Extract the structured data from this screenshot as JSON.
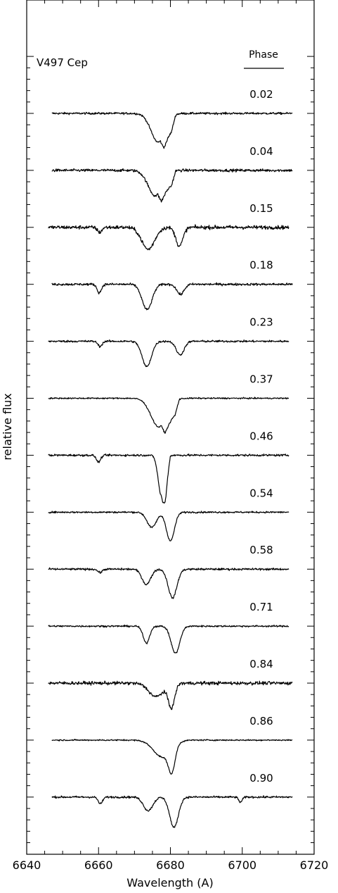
{
  "chart_data": {
    "type": "line",
    "title": "V497 Cep",
    "xlabel": "Wavelength (A)",
    "ylabel": "relative flux",
    "legend_header": "Phase",
    "xlim": [
      6640,
      6720
    ],
    "x_ticks": [
      6640,
      6660,
      6680,
      6700,
      6720
    ],
    "x_tick_labels": [
      "6640",
      "6660",
      "6680",
      "6700",
      "6720"
    ],
    "grid": false,
    "series": [
      {
        "name": "0.02",
        "x_range": [
          6647,
          6714
        ],
        "continuum": 1.0,
        "noise": 0.006,
        "components": [
          {
            "center": 6676.6,
            "depth": 0.17,
            "width": 2.0
          }
        ],
        "asym": {
          "start": 6678.2,
          "end": 6681.5,
          "depth": 0.08
        },
        "bumps": []
      },
      {
        "name": "0.04",
        "x_range": [
          6647,
          6714
        ],
        "continuum": 1.0,
        "noise": 0.008,
        "components": [
          {
            "center": 6675.8,
            "depth": 0.15,
            "width": 2.0
          }
        ],
        "asym": {
          "start": 6677.5,
          "end": 6681.5,
          "depth": 0.08
        },
        "bumps": []
      },
      {
        "name": "0.15",
        "x_range": [
          6646,
          6713
        ],
        "continuum": 1.0,
        "noise": 0.011,
        "components": [
          {
            "center": 6673.8,
            "depth": 0.13,
            "width": 1.8
          },
          {
            "center": 6682.5,
            "depth": 0.11,
            "width": 1.0
          }
        ],
        "asym": null,
        "bumps": [
          {
            "center": 6660.3,
            "depth": 0.03,
            "width": 0.6
          }
        ]
      },
      {
        "name": "0.18",
        "x_range": [
          6647,
          6714
        ],
        "continuum": 1.0,
        "noise": 0.007,
        "components": [
          {
            "center": 6673.5,
            "depth": 0.15,
            "width": 1.4
          },
          {
            "center": 6682.8,
            "depth": 0.06,
            "width": 1.0
          }
        ],
        "asym": null,
        "bumps": [
          {
            "center": 6660.2,
            "depth": 0.05,
            "width": 0.6
          }
        ]
      },
      {
        "name": "0.23",
        "x_range": [
          6646,
          6713
        ],
        "continuum": 1.0,
        "noise": 0.006,
        "components": [
          {
            "center": 6673.4,
            "depth": 0.15,
            "width": 1.3
          },
          {
            "center": 6682.7,
            "depth": 0.08,
            "width": 1.1
          }
        ],
        "asym": null,
        "bumps": [
          {
            "center": 6660.4,
            "depth": 0.03,
            "width": 0.6
          }
        ]
      },
      {
        "name": "0.37",
        "x_range": [
          6646,
          6713
        ],
        "continuum": 1.0,
        "noise": 0.004,
        "components": [
          {
            "center": 6676.8,
            "depth": 0.17,
            "width": 2.2
          }
        ],
        "asym": {
          "start": 6678.5,
          "end": 6682.5,
          "depth": 0.08
        },
        "bumps": []
      },
      {
        "name": "0.46",
        "x_range": [
          6646,
          6713
        ],
        "continuum": 1.0,
        "noise": 0.006,
        "components": [
          {
            "center": 6677.5,
            "depth": 0.24,
            "width": 0.9
          }
        ],
        "asym": {
          "start": 6678.5,
          "end": 6680.0,
          "depth": 0.15
        },
        "bumps": [
          {
            "center": 6660.0,
            "depth": 0.04,
            "width": 0.6
          }
        ]
      },
      {
        "name": "0.54",
        "x_range": [
          6646,
          6713
        ],
        "continuum": 1.0,
        "noise": 0.005,
        "components": [
          {
            "center": 6674.8,
            "depth": 0.09,
            "width": 1.3
          },
          {
            "center": 6680.0,
            "depth": 0.17,
            "width": 1.1
          }
        ],
        "asym": null,
        "bumps": []
      },
      {
        "name": "0.58",
        "x_range": [
          6646,
          6713
        ],
        "continuum": 1.0,
        "noise": 0.006,
        "components": [
          {
            "center": 6673.3,
            "depth": 0.09,
            "width": 1.2
          },
          {
            "center": 6680.6,
            "depth": 0.17,
            "width": 1.2
          }
        ],
        "asym": null,
        "bumps": [
          {
            "center": 6660.4,
            "depth": 0.02,
            "width": 0.6
          }
        ]
      },
      {
        "name": "0.71",
        "x_range": [
          6646,
          6713
        ],
        "continuum": 1.0,
        "noise": 0.005,
        "components": [
          {
            "center": 6673.3,
            "depth": 0.1,
            "width": 0.9
          },
          {
            "center": 6681.4,
            "depth": 0.16,
            "width": 1.2
          }
        ],
        "asym": null,
        "bumps": []
      },
      {
        "name": "0.84",
        "x_range": [
          6646,
          6714
        ],
        "continuum": 1.0,
        "noise": 0.01,
        "components": [
          {
            "center": 6676.0,
            "depth": 0.08,
            "width": 2.0
          },
          {
            "center": 6680.3,
            "depth": 0.14,
            "width": 0.9
          }
        ],
        "asym": null,
        "bumps": []
      },
      {
        "name": "0.86",
        "x_range": [
          6647,
          6714
        ],
        "continuum": 1.0,
        "noise": 0.004,
        "components": [
          {
            "center": 6677.8,
            "depth": 0.1,
            "width": 2.5
          },
          {
            "center": 6680.4,
            "depth": 0.14,
            "width": 0.9
          }
        ],
        "asym": null,
        "bumps": []
      },
      {
        "name": "0.90",
        "x_range": [
          6647,
          6714
        ],
        "continuum": 1.0,
        "noise": 0.006,
        "components": [
          {
            "center": 6673.8,
            "depth": 0.08,
            "width": 1.3
          },
          {
            "center": 6681.0,
            "depth": 0.18,
            "width": 1.2
          }
        ],
        "asym": null,
        "bumps": [
          {
            "center": 6660.5,
            "depth": 0.04,
            "width": 0.6
          },
          {
            "center": 6699.5,
            "depth": 0.03,
            "width": 0.5
          }
        ]
      }
    ]
  }
}
